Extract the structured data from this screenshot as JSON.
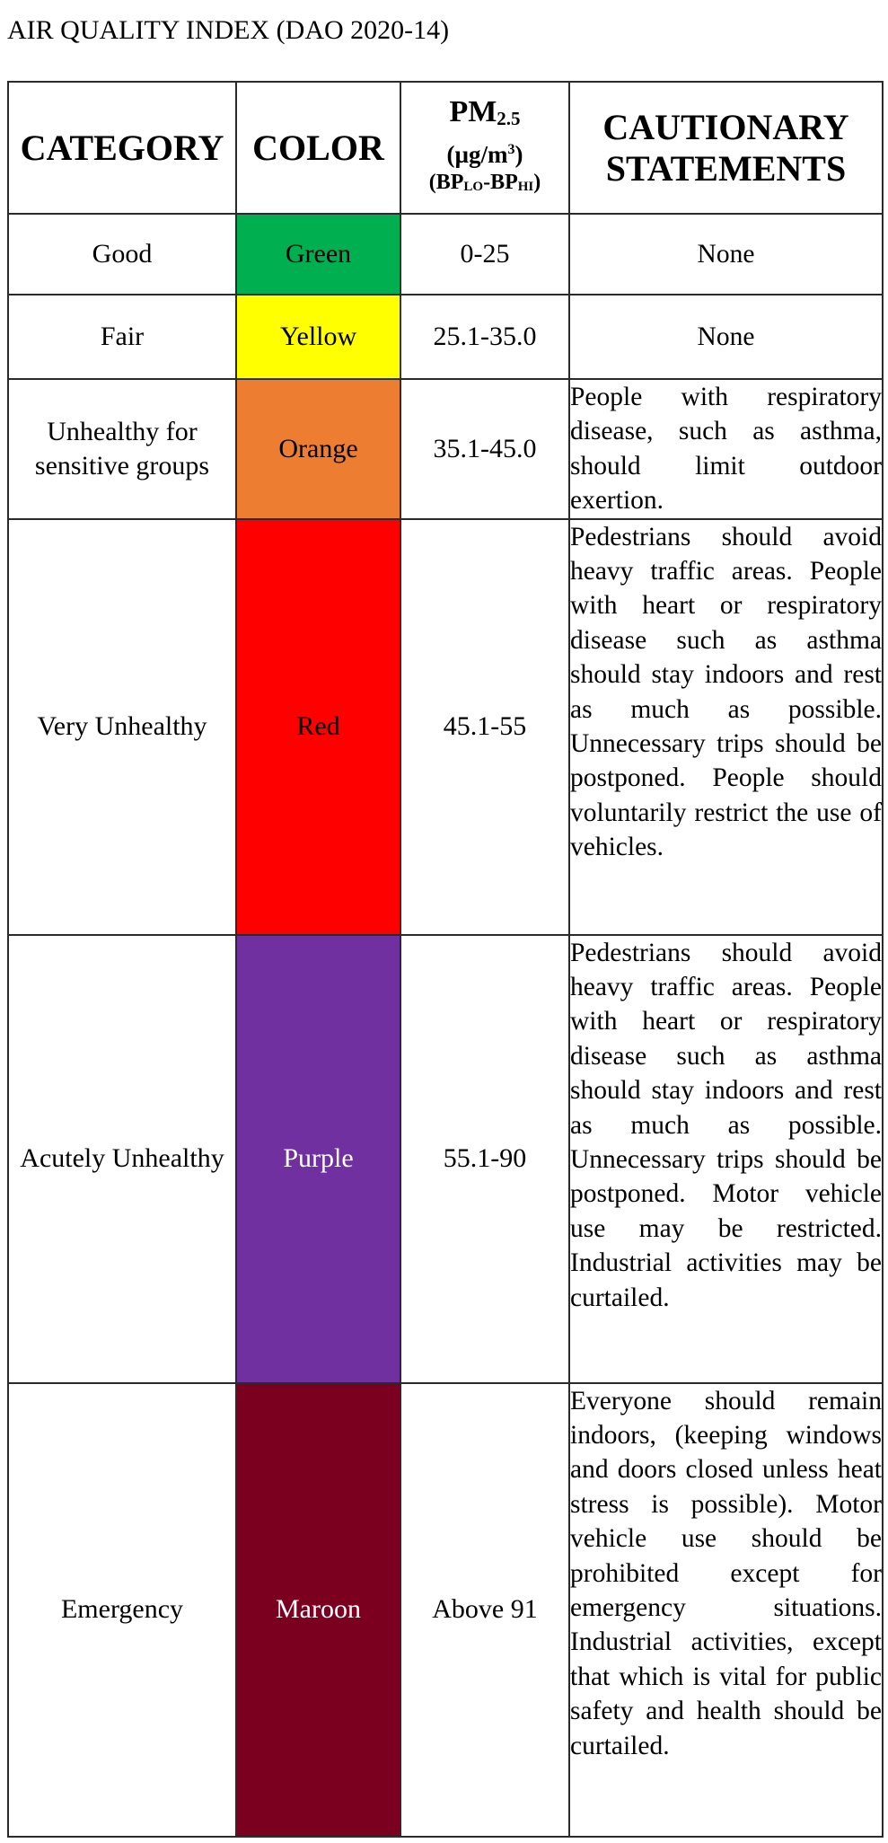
{
  "document": {
    "title": "AIR QUALITY INDEX (DAO 2020-14)"
  },
  "table": {
    "headers": {
      "category": "CATEGORY",
      "color": "COLOR",
      "pm_main": "PM",
      "pm_sub": "2.5",
      "pm_unit_pre": "(µg/m",
      "pm_unit_sup": "3",
      "pm_unit_post": ")",
      "bp_open": "(BP",
      "bp_lo": "LO",
      "bp_dash": "-BP",
      "bp_hi": "HI",
      "bp_close": ")",
      "cautionary": "CAUTIONARY STATEMENTS"
    },
    "rows": [
      {
        "category": "Good",
        "color_label": "Green",
        "bg": "#00b050",
        "text_color": "#000000",
        "pm": "0-25",
        "caution": "None"
      },
      {
        "category": "Fair",
        "color_label": "Yellow",
        "bg": "#ffff00",
        "text_color": "#000000",
        "pm": "25.1-35.0",
        "caution": "None"
      },
      {
        "category": "Unhealthy for sensitive groups",
        "color_label": "Orange",
        "bg": "#ed7d31",
        "text_color": "#000000",
        "pm": "35.1-45.0",
        "caution": "People with respiratory disease, such as asthma, should limit outdoor exertion."
      },
      {
        "category": "Very Unhealthy",
        "color_label": "Red",
        "bg": "#ff0000",
        "text_color": "#000000",
        "pm": "45.1-55",
        "caution": "Pedestrians should avoid heavy traffic areas. People with heart or respiratory disease such as asthma should stay indoors and rest as much as possible. Unnecessary trips should be postponed. People should voluntarily restrict the use of vehicles."
      },
      {
        "category": "Acutely Unhealthy",
        "color_label": "Purple",
        "bg": "#7030a0",
        "text_color": "#ffffff",
        "pm": "55.1-90",
        "caution": "Pedestrians should avoid heavy traffic areas. People with heart or respiratory disease such as asthma should stay indoors and rest as much as possible. Unnecessary trips should be postponed. Motor vehicle use may be restricted. Industrial activities may be curtailed."
      },
      {
        "category": "Emergency",
        "color_label": "Maroon",
        "bg": "#7b0020",
        "text_color": "#ffffff",
        "pm": "Above 91",
        "caution": "Everyone should remain indoors, (keeping windows and doors closed unless heat stress is possible). Motor vehicle use should be prohibited except for emergency situations. Industrial activities, except that which is vital for public safety and health should be curtailed."
      }
    ]
  }
}
